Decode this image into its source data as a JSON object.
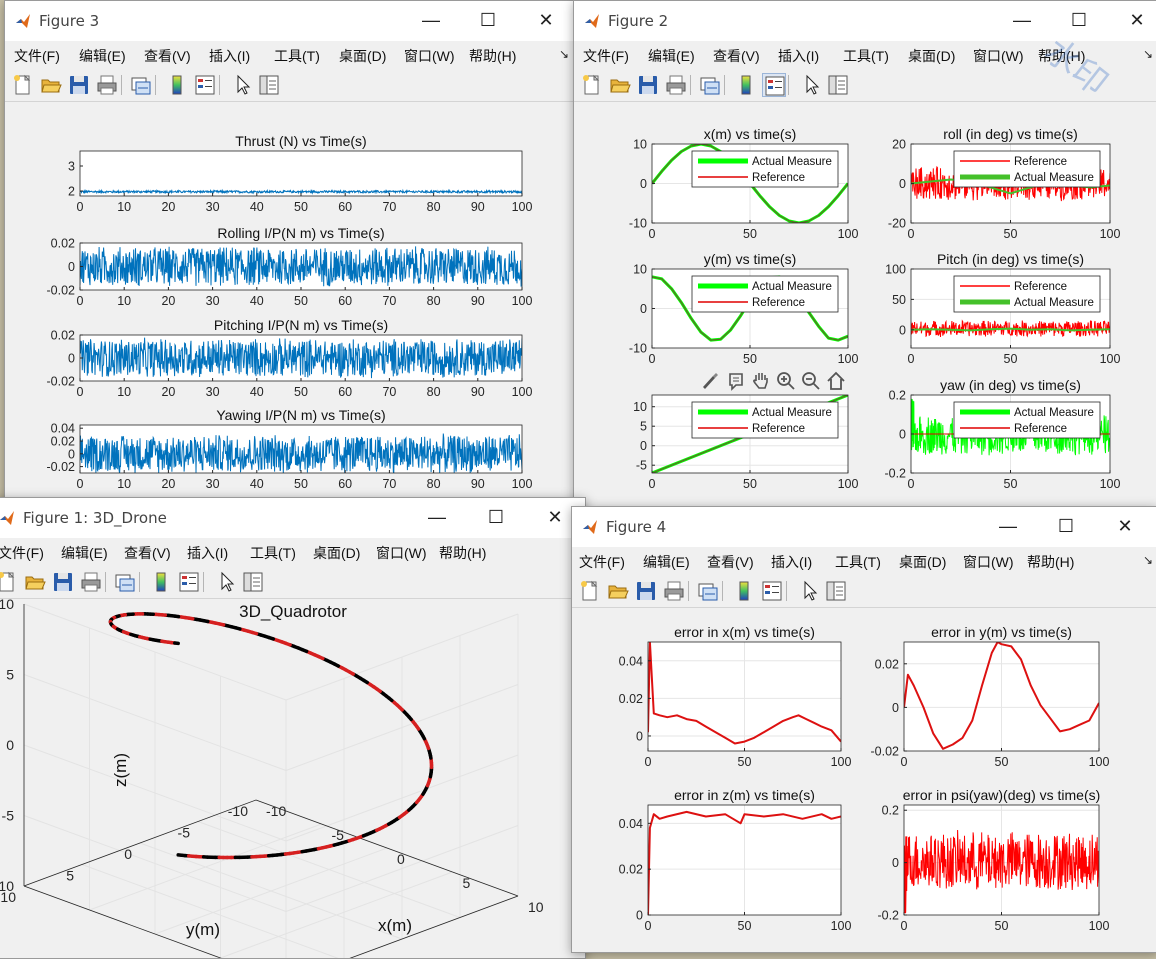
{
  "menu_labels": [
    "文件(F)",
    "编辑(E)",
    "查看(V)",
    "插入(I)",
    "工具(T)",
    "桌面(D)",
    "窗口(W)",
    "帮助(H)"
  ],
  "menu_arrow": "↘",
  "window_controls": {
    "minimize": "—",
    "maximize": "☐",
    "close": "✕"
  },
  "toolbar_icons": [
    "new-figure-icon",
    "open-file-icon",
    "save-icon",
    "print-icon",
    "link-plot-icon",
    "insert-colorbar-icon",
    "insert-legend-icon",
    "edit-plot-arrow-icon",
    "property-inspector-icon"
  ],
  "axes_toolbar_icons": [
    "brush-icon",
    "data-tip-icon",
    "pan-icon",
    "zoom-in-icon",
    "zoom-out-icon",
    "home-icon"
  ],
  "watermark": "水印",
  "colors": {
    "matlab_blue": "#0072bd",
    "green": "#00ff00",
    "red": "#ff0000",
    "dark_red": "#e00000"
  },
  "windows": {
    "fig3": {
      "title": "Figure 3"
    },
    "fig2": {
      "title": "Figure 2"
    },
    "fig1": {
      "title": "Figure 1: 3D_Drone"
    },
    "fig4": {
      "title": "Figure 4"
    }
  },
  "chart_data": [
    {
      "id": "thrust",
      "type": "line",
      "title": "Thrust (N) vs Time(s)",
      "xlim": [
        0,
        100
      ],
      "xticks": [
        "0",
        "10",
        "20",
        "30",
        "40",
        "50",
        "60",
        "70",
        "80",
        "90",
        "100"
      ],
      "yticks": [
        "2",
        "3"
      ],
      "ylim": [
        1.8,
        3.6
      ],
      "series": [
        {
          "kind": "noise",
          "color": "#0072bd",
          "x": [
            0,
            100
          ],
          "center": 1.97,
          "amp": 0.05
        }
      ]
    },
    {
      "id": "rolling",
      "type": "line",
      "title": "Rolling I/P(N m) vs Time(s)",
      "xlim": [
        0,
        100
      ],
      "xticks": [
        "0",
        "10",
        "20",
        "30",
        "40",
        "50",
        "60",
        "70",
        "80",
        "90",
        "100"
      ],
      "yticks": [
        "-0.02",
        "0",
        "0.02"
      ],
      "ylim": [
        -0.02,
        0.02
      ],
      "series": [
        {
          "kind": "noise",
          "color": "#0072bd",
          "x": [
            0,
            100
          ],
          "center": 0,
          "amp": 0.018
        }
      ]
    },
    {
      "id": "pitching",
      "type": "line",
      "title": "Pitching I/P(N m) vs Time(s)",
      "xlim": [
        0,
        100
      ],
      "xticks": [
        "0",
        "10",
        "20",
        "30",
        "40",
        "50",
        "60",
        "70",
        "80",
        "90",
        "100"
      ],
      "yticks": [
        "-0.02",
        "0",
        "0.02"
      ],
      "ylim": [
        -0.02,
        0.02
      ],
      "series": [
        {
          "kind": "noise",
          "color": "#0072bd",
          "x": [
            0,
            100
          ],
          "center": 0,
          "amp": 0.018
        }
      ]
    },
    {
      "id": "yawing",
      "type": "line",
      "title": "Yawing I/P(N m) vs Time(s)",
      "xlim": [
        0,
        100
      ],
      "xticks": [
        "0",
        "10",
        "20",
        "30",
        "40",
        "50",
        "60",
        "70",
        "80",
        "90",
        "100"
      ],
      "yticks": [
        "-0.02",
        "0",
        "0.02",
        "0.04"
      ],
      "ylim": [
        -0.03,
        0.045
      ],
      "series": [
        {
          "kind": "noise",
          "color": "#0072bd",
          "x": [
            0,
            100
          ],
          "center": 0,
          "amp": 0.032
        }
      ]
    },
    {
      "id": "x_pos",
      "type": "line",
      "title": "x(m) vs time(s)",
      "xlim": [
        0,
        100
      ],
      "xticks": [
        "0",
        "50",
        "100"
      ],
      "yticks": [
        "-10",
        "0",
        "10"
      ],
      "ylim": [
        -10,
        10
      ],
      "legend": [
        "Actual Measure",
        "Reference"
      ],
      "legend_location": "top-right",
      "series": [
        {
          "name": "Actual Measure",
          "color": "#00ff00",
          "lw": 3,
          "x": [
            0,
            5,
            10,
            15,
            20,
            25,
            30,
            35,
            40,
            45,
            50,
            55,
            60,
            65,
            70,
            75,
            80,
            85,
            90,
            95,
            100
          ],
          "y": [
            0,
            3.1,
            5.9,
            8.1,
            9.5,
            10,
            9.5,
            8.1,
            5.9,
            3.1,
            0,
            -3.1,
            -5.9,
            -8.1,
            -9.5,
            -10,
            -9.5,
            -8.1,
            -5.9,
            -3.1,
            0
          ]
        },
        {
          "name": "Reference",
          "color": "#e00000",
          "lw": 1,
          "x": [
            0,
            5,
            10,
            15,
            20,
            25,
            30,
            35,
            40,
            45,
            50,
            55,
            60,
            65,
            70,
            75,
            80,
            85,
            90,
            95,
            100
          ],
          "y": [
            0,
            3.1,
            5.9,
            8.1,
            9.5,
            10,
            9.5,
            8.1,
            5.9,
            3.1,
            0,
            -3.1,
            -5.9,
            -8.1,
            -9.5,
            -10,
            -9.5,
            -8.1,
            -5.9,
            -3.1,
            0
          ]
        },
        {
          "kind": "line",
          "color": "#556b2f",
          "lw": 1,
          "x": [
            0,
            5,
            10,
            15,
            20,
            25,
            30,
            35,
            40,
            45,
            50,
            55,
            60,
            65,
            70,
            75,
            80,
            85,
            90,
            95,
            100
          ],
          "y": [
            0,
            3.1,
            5.9,
            8.1,
            9.5,
            10,
            9.5,
            8.1,
            5.9,
            3.1,
            0,
            -3.1,
            -5.9,
            -8.1,
            -9.5,
            -10,
            -9.5,
            -8.1,
            -5.9,
            -3.1,
            0
          ]
        }
      ]
    },
    {
      "id": "roll",
      "type": "line",
      "title": "roll (in deg) vs time(s)",
      "xlim": [
        0,
        100
      ],
      "xticks": [
        "0",
        "50",
        "100"
      ],
      "yticks": [
        "-20",
        "0",
        "20"
      ],
      "ylim": [
        -20,
        20
      ],
      "legend": [
        "Reference",
        "Actual Measure"
      ],
      "legend_location": "top-right",
      "series": [
        {
          "name": "Reference",
          "kind": "noise",
          "color": "#ff0000",
          "x": [
            0,
            100
          ],
          "center": 0,
          "amp": 9
        },
        {
          "name": "Actual Measure",
          "color": "#44c12a",
          "lw": 2,
          "x": [
            0,
            10,
            20,
            30,
            40,
            50,
            60,
            70,
            80,
            90,
            100
          ],
          "y": [
            0,
            1,
            2,
            1,
            -2,
            -5,
            -2,
            1,
            -1,
            -2,
            -1
          ]
        }
      ]
    },
    {
      "id": "y_pos",
      "type": "line",
      "title": "y(m) vs time(s)",
      "xlim": [
        0,
        100
      ],
      "xticks": [
        "0",
        "50",
        "100"
      ],
      "yticks": [
        "-10",
        "0",
        "10"
      ],
      "ylim": [
        -10,
        10
      ],
      "legend": [
        "Actual Measure",
        "Reference"
      ],
      "legend_location": "top-right",
      "series": [
        {
          "name": "Actual Measure",
          "color": "#00ff00",
          "lw": 3,
          "x": [
            0,
            5,
            10,
            15,
            20,
            25,
            30,
            35,
            40,
            45,
            50,
            55,
            60,
            65,
            70,
            75,
            80,
            85,
            90,
            95,
            100
          ],
          "y": [
            8,
            7.5,
            5,
            1.5,
            -2.5,
            -6,
            -8,
            -7.8,
            -5.5,
            -2,
            2,
            5.5,
            7.8,
            8,
            6.5,
            3,
            -1,
            -4.5,
            -7.5,
            -8,
            -7
          ]
        },
        {
          "name": "Reference",
          "color": "#e00000",
          "lw": 1,
          "x": [
            0,
            5,
            10,
            15,
            20,
            25,
            30,
            35,
            40,
            45,
            50,
            55,
            60,
            65,
            70,
            75,
            80,
            85,
            90,
            95,
            100
          ],
          "y": [
            8,
            7.5,
            5,
            1.5,
            -2.5,
            -6,
            -8,
            -7.8,
            -5.5,
            -2,
            2,
            5.5,
            7.8,
            8,
            6.5,
            3,
            -1,
            -4.5,
            -7.5,
            -8,
            -7
          ]
        },
        {
          "kind": "line",
          "color": "#556b2f",
          "lw": 1,
          "x": [
            0,
            5,
            10,
            15,
            20,
            25,
            30,
            35,
            40,
            45,
            50,
            55,
            60,
            65,
            70,
            75,
            80,
            85,
            90,
            95,
            100
          ],
          "y": [
            8,
            7.5,
            5,
            1.5,
            -2.5,
            -6,
            -8,
            -7.8,
            -5.5,
            -2,
            2,
            5.5,
            7.8,
            8,
            6.5,
            3,
            -1,
            -4.5,
            -7.5,
            -8,
            -7
          ]
        }
      ]
    },
    {
      "id": "pitch",
      "type": "line",
      "title": "Pitch (in deg) vs time(s)",
      "xlim": [
        0,
        100
      ],
      "xticks": [
        "0",
        "50",
        "100"
      ],
      "yticks": [
        "0",
        "50",
        "100"
      ],
      "ylim": [
        -30,
        100
      ],
      "legend": [
        "Reference",
        "Actual Measure"
      ],
      "legend_location": "top-right",
      "series": [
        {
          "name": "Reference",
          "kind": "noise",
          "color": "#ff0000",
          "x": [
            0,
            100
          ],
          "center": 2,
          "amp": 14
        },
        {
          "name": "Actual Measure",
          "color": "#44c12a",
          "lw": 2,
          "x": [
            0,
            10,
            20,
            30,
            40,
            50,
            60,
            70,
            80,
            90,
            100
          ],
          "y": [
            0,
            1,
            0,
            -1,
            1,
            2,
            0,
            1,
            -1,
            0,
            1
          ]
        }
      ]
    },
    {
      "id": "z_pos",
      "type": "line",
      "title": "",
      "xlim": [
        0,
        100
      ],
      "xticks": [
        "0",
        "50",
        "100"
      ],
      "yticks": [
        "-5",
        "0",
        "5",
        "10"
      ],
      "ylim": [
        -7,
        13
      ],
      "legend": [
        "Actual Measure",
        "Reference"
      ],
      "legend_location": "top-right",
      "series": [
        {
          "name": "Actual Measure",
          "color": "#00ff00",
          "lw": 3,
          "x": [
            0,
            100
          ],
          "y": [
            -7,
            13
          ]
        },
        {
          "name": "Reference",
          "color": "#e00000",
          "lw": 1,
          "x": [
            0,
            100
          ],
          "y": [
            -7,
            13
          ]
        },
        {
          "kind": "line",
          "color": "#556b2f",
          "lw": 1,
          "x": [
            0,
            100
          ],
          "y": [
            -7,
            13
          ]
        }
      ]
    },
    {
      "id": "yaw",
      "type": "line",
      "title": "yaw (in deg) vs time(s)",
      "xlim": [
        0,
        100
      ],
      "xticks": [
        "0",
        "50",
        "100"
      ],
      "yticks": [
        "-0.2",
        "0",
        "0.2"
      ],
      "ylim": [
        -0.2,
        0.2
      ],
      "legend": [
        "Actual Measure",
        "Reference"
      ],
      "legend_location": "top-right",
      "series": [
        {
          "name": "Actual Measure",
          "kind": "noise",
          "color": "#00ff00",
          "x": [
            0,
            100
          ],
          "center": -0.005,
          "amp": 0.11
        },
        {
          "kind": "noise",
          "color": "#00ff00",
          "x": [
            0,
            1.5
          ],
          "center": 0.05,
          "amp": 0.15
        },
        {
          "name": "Reference",
          "color": "#e00000",
          "lw": 1,
          "x": [
            0,
            100
          ],
          "y": [
            0,
            0
          ]
        }
      ]
    },
    {
      "id": "quad3d",
      "type": "line3d",
      "title": "3D_Quadrotor",
      "xlabel": "x(m)",
      "ylabel": "y(m)",
      "zlabel": "z(m)",
      "xticks": [
        "-10",
        "-5",
        "0",
        "5",
        "10"
      ],
      "yticks": [
        "-10",
        "-5",
        "0",
        "5",
        "10"
      ],
      "zticks": [
        "-10",
        "-5",
        "0",
        "5",
        "10"
      ],
      "series": [
        {
          "name": "helix",
          "color_a": "#000000",
          "color_b": "#d62020",
          "t_range": [
            0,
            100
          ],
          "x": "10 sin(2πt/100)",
          "y": "8 cos(2πt/100)",
          "z": "-5 + 15 t/100"
        }
      ]
    },
    {
      "id": "err_x",
      "type": "line",
      "title": "error in x(m) vs time(s)",
      "xlim": [
        0,
        100
      ],
      "xticks": [
        "0",
        "50",
        "100"
      ],
      "yticks": [
        "0",
        "0.02",
        "0.04"
      ],
      "ylim": [
        -0.008,
        0.05
      ],
      "series": [
        {
          "color": "#dd1111",
          "lw": 2,
          "x": [
            0,
            1,
            3,
            6,
            10,
            15,
            20,
            25,
            30,
            35,
            40,
            45,
            50,
            55,
            60,
            65,
            70,
            75,
            78,
            82,
            86,
            90,
            95,
            100
          ],
          "y": [
            0.002,
            0.05,
            0.012,
            0.011,
            0.01,
            0.011,
            0.009,
            0.008,
            0.005,
            0.002,
            -0.001,
            -0.004,
            -0.003,
            -0.001,
            0.002,
            0.005,
            0.008,
            0.01,
            0.011,
            0.009,
            0.007,
            0.005,
            0.003,
            -0.003
          ]
        }
      ]
    },
    {
      "id": "err_y",
      "type": "line",
      "title": "error in y(m) vs time(s)",
      "xlim": [
        0,
        100
      ],
      "xticks": [
        "0",
        "50",
        "100"
      ],
      "yticks": [
        "-0.02",
        "0",
        "0.02"
      ],
      "ylim": [
        -0.02,
        0.03
      ],
      "series": [
        {
          "color": "#dd1111",
          "lw": 2,
          "x": [
            0,
            2,
            5,
            10,
            15,
            20,
            25,
            30,
            35,
            40,
            45,
            48,
            50,
            55,
            60,
            65,
            70,
            75,
            80,
            85,
            90,
            95,
            100
          ],
          "y": [
            0,
            0.015,
            0.01,
            0.0,
            -0.012,
            -0.019,
            -0.017,
            -0.014,
            -0.006,
            0.01,
            0.025,
            0.03,
            0.029,
            0.028,
            0.022,
            0.01,
            0.001,
            -0.005,
            -0.011,
            -0.01,
            -0.008,
            -0.006,
            0.002
          ]
        }
      ]
    },
    {
      "id": "err_z",
      "type": "line",
      "title": "error in z(m) vs time(s)",
      "xlim": [
        0,
        100
      ],
      "xticks": [
        "0",
        "50",
        "100"
      ],
      "yticks": [
        "0",
        "0.02",
        "0.04"
      ],
      "ylim": [
        0,
        0.048
      ],
      "series": [
        {
          "color": "#dd1111",
          "lw": 2,
          "x": [
            0,
            1,
            3,
            6,
            10,
            20,
            30,
            40,
            48,
            50,
            60,
            70,
            80,
            90,
            95,
            100
          ],
          "y": [
            0,
            0.038,
            0.044,
            0.042,
            0.043,
            0.045,
            0.043,
            0.044,
            0.04,
            0.044,
            0.043,
            0.044,
            0.042,
            0.044,
            0.042,
            0.043
          ]
        }
      ]
    },
    {
      "id": "err_psi",
      "type": "line",
      "title": "error in psi(yaw)(deg) vs time(s)",
      "xlim": [
        0,
        100
      ],
      "xticks": [
        "0",
        "50",
        "100"
      ],
      "yticks": [
        "-0.2",
        "0",
        "0.2"
      ],
      "ylim": [
        -0.2,
        0.22
      ],
      "series": [
        {
          "kind": "noise",
          "color": "#ff0000",
          "x": [
            0,
            100
          ],
          "center": 0.005,
          "amp": 0.12
        },
        {
          "kind": "line",
          "color": "#ff0000",
          "lw": 2,
          "x": [
            0,
            0.6,
            1.2
          ],
          "y": [
            0.05,
            -0.19,
            0.1
          ]
        }
      ]
    }
  ]
}
